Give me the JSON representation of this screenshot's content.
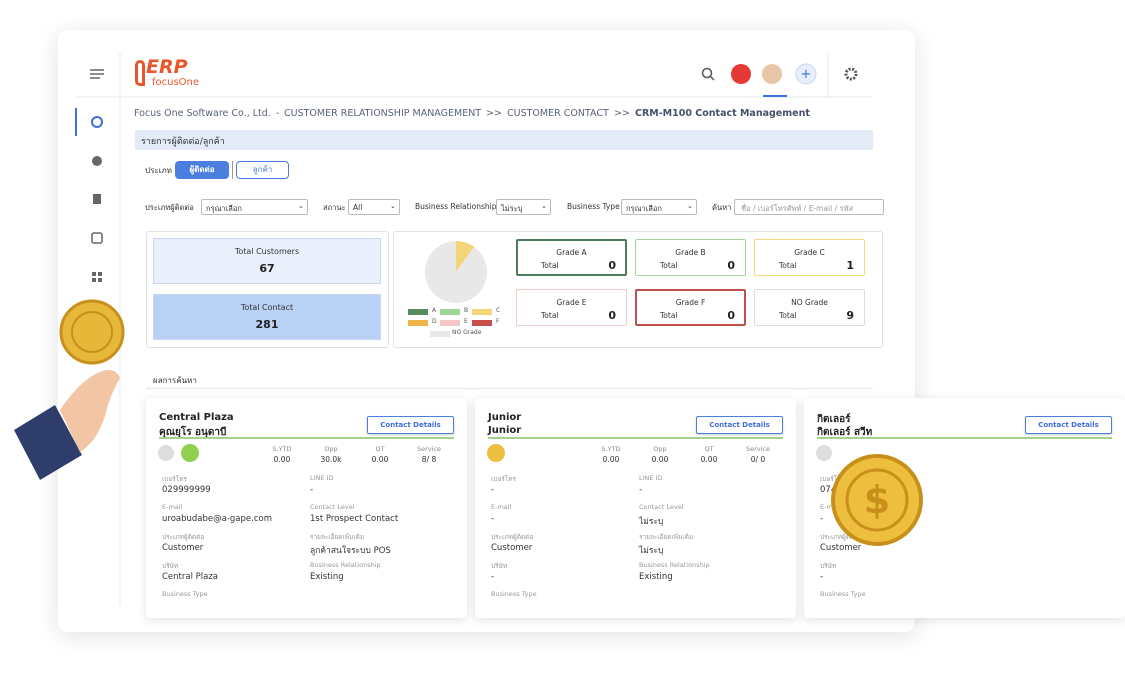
{
  "header": {
    "logo_top": "ERP",
    "logo_bottom": "focusOne"
  },
  "breadcrumb": {
    "parts": [
      "Focus One Software Co., Ltd.",
      "CUSTOMER RELATIONSHIP MANAGEMENT",
      "CUSTOMER CONTACT",
      "CRM-M100 Contact Management"
    ],
    "separators": [
      "-",
      ">>",
      ">>"
    ]
  },
  "section_title": "รายการผู้ติดต่อ/ลูกค้า",
  "type_filter": {
    "label": "ประเภท",
    "options": [
      "ผู้ติดต่อ",
      "ลูกค้า"
    ]
  },
  "filters": [
    {
      "label": "ประเภทผู้ติดต่อ",
      "value": "กรุณาเลือก"
    },
    {
      "label": "สถานะ",
      "value": "All"
    },
    {
      "label": "Business Relationship",
      "value": "ไม่ระบุ"
    },
    {
      "label": "Business Type",
      "value": "กรุณาเลือก"
    }
  ],
  "search": {
    "label": "ค้นหา",
    "placeholder": "ชื่อ / เบอร์โทรศัพท์ / E-mail / รหัส"
  },
  "summary": [
    {
      "label": "Total Customers",
      "value": 67
    },
    {
      "label": "Total Contact",
      "value": 281
    }
  ],
  "grade_total_label": "Total",
  "grades": [
    {
      "name": "Grade A",
      "total": 0
    },
    {
      "name": "Grade B",
      "total": 0
    },
    {
      "name": "Grade C",
      "total": 1
    },
    {
      "name": "Grade E",
      "total": 0
    },
    {
      "name": "Grade F",
      "total": 0
    },
    {
      "name": "NO Grade",
      "total": 9
    }
  ],
  "legend": [
    "A",
    "B",
    "C",
    "D",
    "E",
    "F",
    "NO Grade"
  ],
  "results_title": "ผลการค้นหา",
  "button_label": "Contact Details",
  "stat_labels": [
    "S.YTD",
    "Opp",
    "QT",
    "Service"
  ],
  "cards": [
    {
      "name": "Central Plaza",
      "contact": "คุณยุโร อนุดาบี",
      "stats": [
        "0.00",
        "30.0k",
        "0.00",
        "8/ 8"
      ],
      "fields": [
        {
          "label": "เบอร์โทร",
          "value": "029999999"
        },
        {
          "label": "LINE ID",
          "value": "-"
        },
        {
          "label": "E-mail",
          "value": "uroabudabe@a-gape.com"
        },
        {
          "label": "Contact Level",
          "value": "1st Prospect Contact"
        },
        {
          "label": "ประเภทผู้ติดต่อ",
          "value": "Customer"
        },
        {
          "label": "รายละเอียดเพิ่มเติม",
          "value": "ลูกค้าสนใจระบบ POS"
        },
        {
          "label": "บริษัท",
          "value": "Central Plaza"
        },
        {
          "label": "Business Relationship",
          "value": "Existing"
        },
        {
          "label": "Business Type"
        }
      ]
    },
    {
      "name": "Junior",
      "contact": "Junior",
      "stats": [
        "0.00",
        "0.00",
        "0.00",
        "0/ 0"
      ],
      "fields": [
        {
          "label": "เบอร์โทร",
          "value": "-"
        },
        {
          "label": "LINE ID",
          "value": "-"
        },
        {
          "label": "E-mail",
          "value": "-"
        },
        {
          "label": "Contact Level",
          "value": "ไม่ระบุ"
        },
        {
          "label": "ประเภทผู้ติดต่อ",
          "value": "Customer"
        },
        {
          "label": "รายละเอียดเพิ่มเติม",
          "value": "ไม่ระบุ"
        },
        {
          "label": "บริษัท",
          "value": "-"
        },
        {
          "label": "Business Relationship",
          "value": "Existing"
        },
        {
          "label": "Business Type"
        }
      ]
    },
    {
      "name": "กิตเลอร์",
      "contact": "กิตเลอร์ สวีท",
      "fields": [
        {
          "label": "เบอร์โทร",
          "value": "074"
        },
        {
          "label": "E-mail",
          "value": "-"
        },
        {
          "label": "ประเภทผู้ติดต่อ",
          "value": "Customer"
        },
        {
          "label": "บริษัท",
          "value": "-"
        },
        {
          "label": "Business Type"
        }
      ]
    }
  ]
}
